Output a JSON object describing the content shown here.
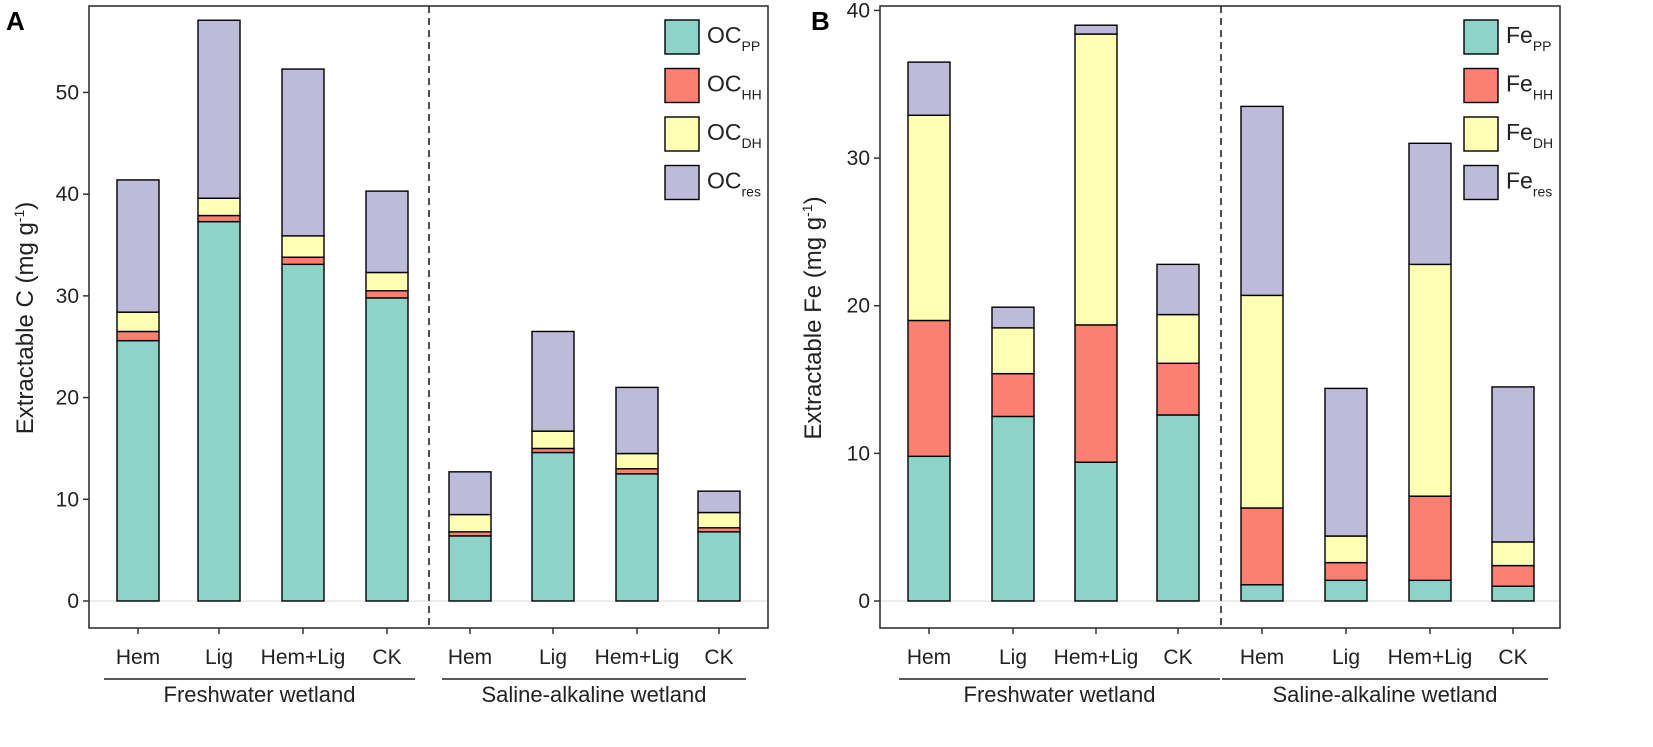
{
  "chart_data": [
    {
      "panel": "A",
      "type": "stacked-bar",
      "ylabel_main": "Extractable C (mg g",
      "ylabel_exp": "-1",
      "ylabel_close": ")",
      "ylim": [
        0,
        58.5
      ],
      "yticks": [
        0,
        10,
        20,
        30,
        40,
        50
      ],
      "categories": [
        "Hem",
        "Lig",
        "Hem+Lig",
        "CK",
        "Hem",
        "Lig",
        "Hem+Lig",
        "CK"
      ],
      "groups": [
        {
          "label": "Freshwater wetland",
          "start": 0,
          "end": 3
        },
        {
          "label": "Saline-alkaline wetland",
          "start": 4,
          "end": 7
        }
      ],
      "series": [
        {
          "name": "OC",
          "sub": "PP",
          "color": "#8dd3c7",
          "values": [
            25.6,
            37.3,
            33.1,
            29.8,
            6.4,
            14.6,
            12.5,
            6.8
          ]
        },
        {
          "name": "OC",
          "sub": "HH",
          "color": "#fb8072",
          "values": [
            0.9,
            0.6,
            0.7,
            0.7,
            0.4,
            0.4,
            0.5,
            0.4
          ]
        },
        {
          "name": "OC",
          "sub": "DH",
          "color": "#ffffb3",
          "values": [
            1.9,
            1.7,
            2.1,
            1.8,
            1.7,
            1.7,
            1.5,
            1.5
          ]
        },
        {
          "name": "OC",
          "sub": "res",
          "color": "#bebada",
          "values": [
            13.0,
            17.5,
            16.4,
            8.0,
            4.2,
            9.8,
            6.5,
            2.1
          ]
        }
      ]
    },
    {
      "panel": "B",
      "type": "stacked-bar",
      "ylabel_main": "Extractable Fe (mg g",
      "ylabel_exp": "-1",
      "ylabel_close": ")",
      "ylim": [
        0,
        40.3
      ],
      "yticks": [
        0,
        10,
        20,
        30,
        40
      ],
      "categories": [
        "Hem",
        "Lig",
        "Hem+Lig",
        "CK",
        "Hem",
        "Lig",
        "Hem+Lig",
        "CK"
      ],
      "groups": [
        {
          "label": "Freshwater wetland",
          "start": 0,
          "end": 3
        },
        {
          "label": "Saline-alkaline wetland",
          "start": 4,
          "end": 7
        }
      ],
      "series": [
        {
          "name": "Fe",
          "sub": "PP",
          "color": "#8dd3c7",
          "values": [
            9.8,
            12.5,
            9.4,
            12.6,
            1.1,
            1.4,
            1.4,
            1.0
          ]
        },
        {
          "name": "Fe",
          "sub": "HH",
          "color": "#fb8072",
          "values": [
            9.2,
            2.9,
            9.3,
            3.5,
            5.2,
            1.2,
            5.7,
            1.4
          ]
        },
        {
          "name": "Fe",
          "sub": "DH",
          "color": "#ffffb3",
          "values": [
            13.9,
            3.1,
            19.7,
            3.3,
            14.4,
            1.8,
            15.7,
            1.6
          ]
        },
        {
          "name": "Fe",
          "sub": "res",
          "color": "#bebada",
          "values": [
            3.6,
            1.4,
            0.6,
            3.4,
            12.8,
            10.0,
            8.2,
            10.5
          ]
        }
      ]
    }
  ]
}
